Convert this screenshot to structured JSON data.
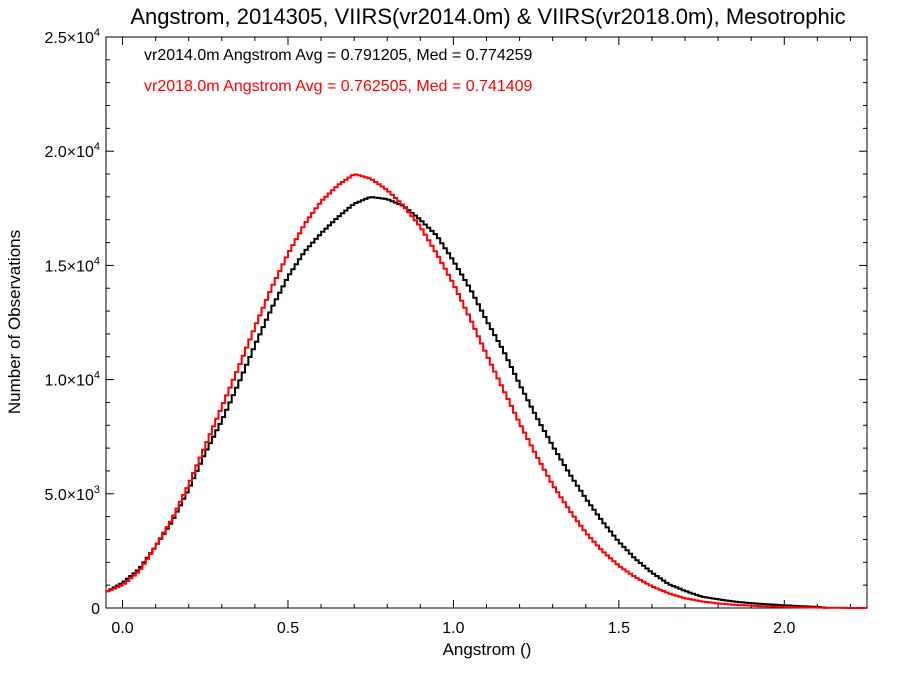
{
  "chart_data": {
    "type": "line",
    "title": "Angstrom, 2014305, VIIRS(vr2014.0m) & VIIRS(vr2018.0m), Mesotrophic",
    "xlabel": "Angstrom ()",
    "ylabel": "Number of Observations",
    "xlim": [
      -0.05,
      2.25
    ],
    "ylim": [
      0,
      25000
    ],
    "x_ticks": [
      0.0,
      0.5,
      1.0,
      1.5,
      2.0
    ],
    "x_tick_labels": [
      "0.0",
      "0.5",
      "1.0",
      "1.5",
      "2.0"
    ],
    "y_ticks": [
      0,
      5000,
      10000,
      15000,
      20000,
      25000
    ],
    "y_tick_labels": [
      {
        "mantissa": "0",
        "exp": ""
      },
      {
        "mantissa": "5.0×10",
        "exp": "3"
      },
      {
        "mantissa": "1.0×10",
        "exp": "4"
      },
      {
        "mantissa": "1.5×10",
        "exp": "4"
      },
      {
        "mantissa": "2.0×10",
        "exp": "4"
      },
      {
        "mantissa": "2.5×10",
        "exp": "4"
      }
    ],
    "legend_position": "top-left",
    "series": [
      {
        "name": "vr2014.0m Angstrom Avg = 0.791205, Med = 0.774259",
        "color": "#000000",
        "x": [
          -0.05,
          0.0,
          0.05,
          0.1,
          0.15,
          0.2,
          0.25,
          0.3,
          0.35,
          0.4,
          0.45,
          0.5,
          0.55,
          0.6,
          0.65,
          0.7,
          0.75,
          0.8,
          0.85,
          0.9,
          0.95,
          1.0,
          1.05,
          1.1,
          1.15,
          1.2,
          1.25,
          1.3,
          1.35,
          1.4,
          1.45,
          1.5,
          1.55,
          1.6,
          1.65,
          1.7,
          1.75,
          1.8,
          1.85,
          1.9,
          1.95,
          2.0,
          2.05,
          2.1,
          2.13
        ],
        "y": [
          700,
          1100,
          1700,
          2700,
          3800,
          5200,
          6800,
          8200,
          9800,
          11500,
          13100,
          14500,
          15600,
          16400,
          17100,
          17700,
          18000,
          17900,
          17600,
          17000,
          16300,
          15200,
          14000,
          12600,
          11300,
          9800,
          8400,
          7100,
          5900,
          4800,
          3800,
          2900,
          2150,
          1550,
          1050,
          750,
          500,
          380,
          280,
          210,
          160,
          120,
          80,
          50,
          0
        ]
      },
      {
        "name": "vr2018.0m Angstrom Avg = 0.762505, Med = 0.741409",
        "color": "#ff0000",
        "x": [
          -0.05,
          0.0,
          0.05,
          0.1,
          0.15,
          0.2,
          0.25,
          0.3,
          0.35,
          0.4,
          0.45,
          0.5,
          0.55,
          0.6,
          0.65,
          0.7,
          0.75,
          0.8,
          0.85,
          0.9,
          0.95,
          1.0,
          1.05,
          1.1,
          1.15,
          1.2,
          1.25,
          1.3,
          1.35,
          1.4,
          1.45,
          1.5,
          1.55,
          1.6,
          1.65,
          1.7,
          1.75,
          1.8,
          1.85,
          1.9,
          1.95,
          2.0,
          2.05,
          2.1,
          2.15,
          2.2,
          2.25
        ],
        "y": [
          700,
          1000,
          1600,
          2700,
          3900,
          5400,
          7100,
          8800,
          10500,
          12300,
          14000,
          15500,
          16800,
          17800,
          18500,
          19000,
          18800,
          18300,
          17600,
          16700,
          15500,
          14200,
          12700,
          11100,
          9600,
          8100,
          6700,
          5400,
          4300,
          3300,
          2500,
          1850,
          1350,
          950,
          650,
          430,
          290,
          200,
          140,
          100,
          70,
          50,
          30,
          20,
          10,
          0,
          0
        ]
      }
    ]
  }
}
